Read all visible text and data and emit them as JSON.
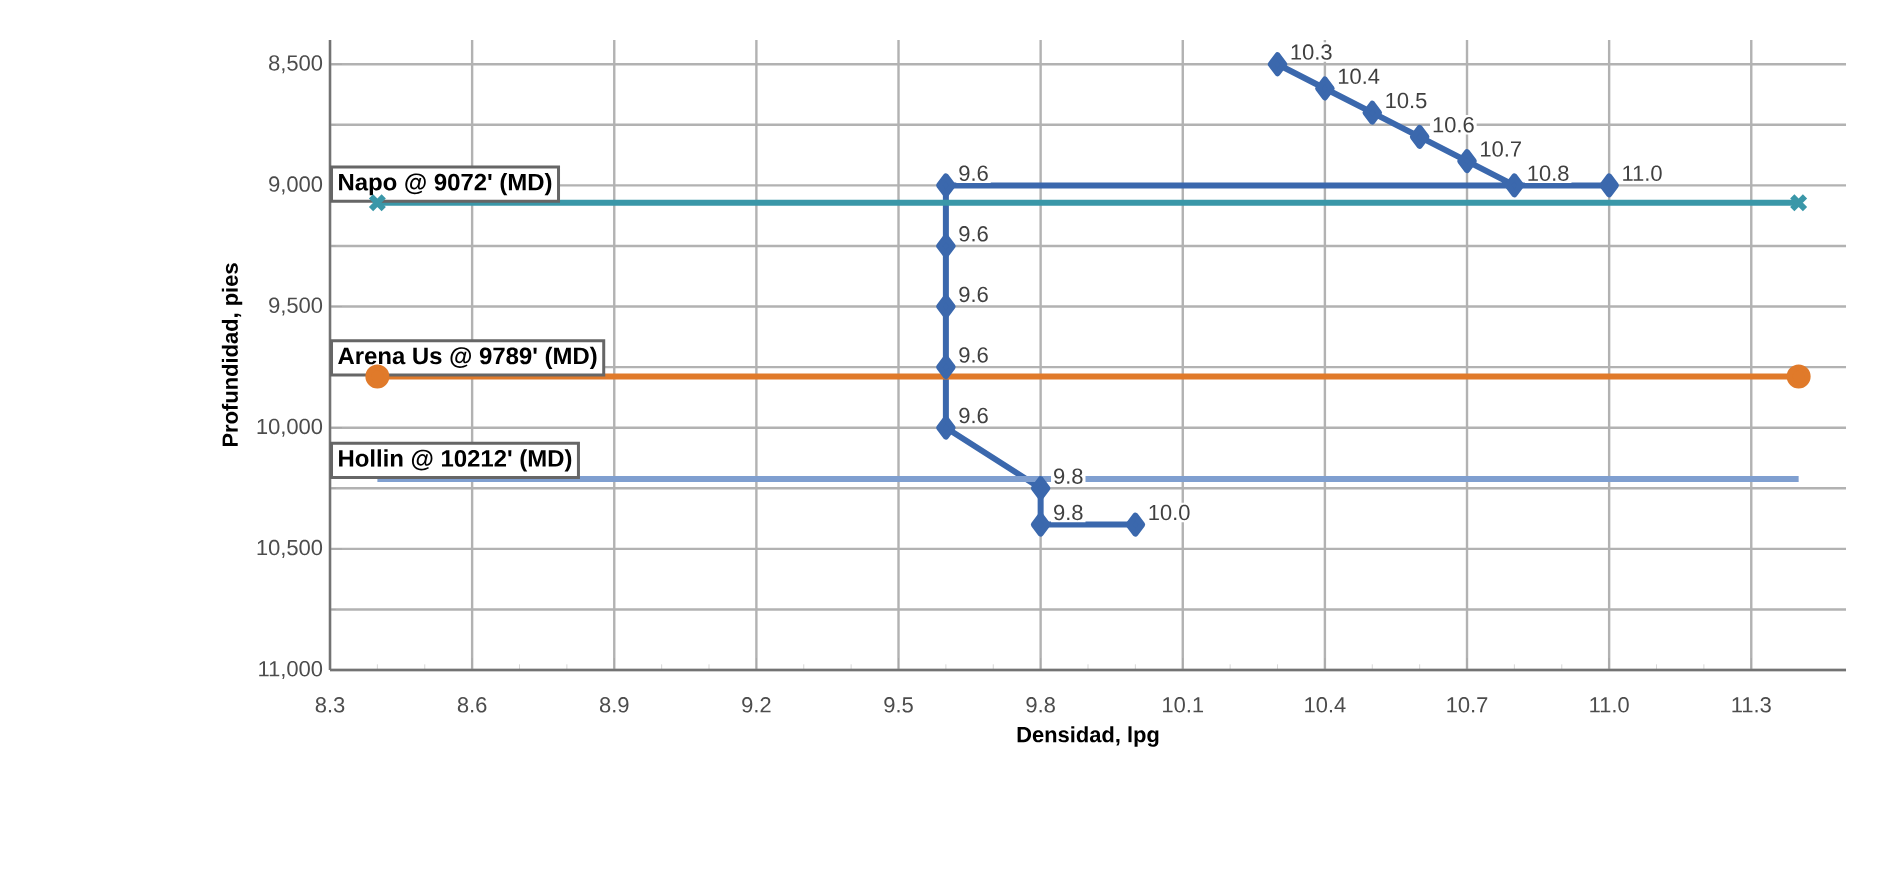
{
  "chart_data": {
    "type": "line",
    "xlabel": "Densidad, lpg",
    "ylabel": "Profundidad, pies",
    "xlim": [
      8.3,
      11.5
    ],
    "xticks": [
      8.3,
      8.6,
      8.9,
      9.2,
      9.5,
      9.8,
      10.1,
      10.4,
      10.7,
      {
        "value": 11.0,
        "label": "11.0"
      },
      11.3
    ],
    "ylim": [
      11000,
      8400
    ],
    "yticks": [
      {
        "value": 8500,
        "label": "8,500"
      },
      {
        "value": 9000,
        "label": "9,000"
      },
      {
        "value": 9500,
        "label": "9,500"
      },
      {
        "value": 10000,
        "label": "10,000"
      },
      {
        "value": 10500,
        "label": "10,500"
      },
      {
        "value": 11000,
        "label": "11,000"
      }
    ],
    "grid": true,
    "legend": false,
    "line_style": "solid",
    "annotations": [
      {
        "text": "10.3",
        "x": 10.3,
        "y": 8500
      },
      {
        "text": "10.4",
        "x": 10.4,
        "y": 8600
      },
      {
        "text": "10.5",
        "x": 10.5,
        "y": 8700
      },
      {
        "text": "10.6",
        "x": 10.6,
        "y": 8800
      },
      {
        "text": "10.7",
        "x": 10.7,
        "y": 8900
      },
      {
        "text": "10.8",
        "x": 10.8,
        "y": 9000
      },
      {
        "text": "11.0",
        "x": 11.0,
        "y": 9000
      },
      {
        "text": "9.6",
        "x": 9.6,
        "y": 9000
      },
      {
        "text": "9.6",
        "x": 9.6,
        "y": 9250
      },
      {
        "text": "9.6",
        "x": 9.6,
        "y": 9500
      },
      {
        "text": "9.6",
        "x": 9.6,
        "y": 9750
      },
      {
        "text": "9.6",
        "x": 9.6,
        "y": 10000
      },
      {
        "text": "9.8",
        "x": 9.8,
        "y": 10250
      },
      {
        "text": "9.8",
        "x": 9.8,
        "y": 10400
      },
      {
        "text": "10.0",
        "x": 10.0,
        "y": 10400
      }
    ],
    "series": [
      {
        "color": "#3b68ad",
        "marker": "diamond",
        "x": [
          10.3,
          10.4,
          10.5,
          10.6,
          10.7,
          10.8,
          11.0,
          9.6,
          9.6,
          9.6,
          9.6,
          9.6,
          9.8,
          9.8,
          10.0
        ],
        "values": [
          8500,
          8600,
          8700,
          8800,
          8900,
          9000,
          9000,
          9000,
          9250,
          9500,
          9750,
          10000,
          10250,
          10400,
          10400
        ]
      },
      {
        "name": "Napo @ 9072' (MD)",
        "color": "#3a97a8",
        "marker": "cross",
        "x": [
          8.4,
          11.4
        ],
        "values": [
          9072,
          9072
        ]
      },
      {
        "name": "Arena Us @ 9789' (MD)",
        "color": "#e07a2a",
        "marker": "circle",
        "x": [
          8.4,
          11.4
        ],
        "values": [
          9789,
          9789
        ]
      },
      {
        "name": "Hollin @ 10212' (MD)",
        "color": "#7f9fd0",
        "marker": "none",
        "x": [
          8.4,
          11.4
        ],
        "values": [
          10212,
          10212
        ]
      }
    ]
  }
}
